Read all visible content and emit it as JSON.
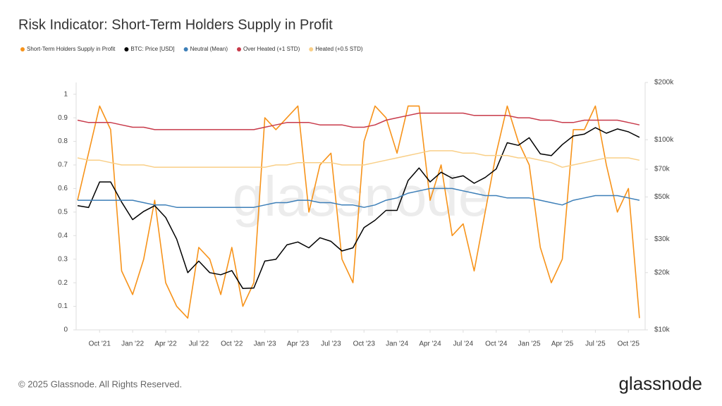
{
  "chart_data": {
    "type": "line",
    "title": "Risk Indicator: Short-Term Holders Supply in Profit",
    "x": [
      "2021-08",
      "2021-09",
      "2021-10",
      "2021-11",
      "2021-12",
      "2022-01",
      "2022-02",
      "2022-03",
      "2022-04",
      "2022-05",
      "2022-06",
      "2022-07",
      "2022-08",
      "2022-09",
      "2022-10",
      "2022-11",
      "2022-12",
      "2023-01",
      "2023-02",
      "2023-03",
      "2023-04",
      "2023-05",
      "2023-06",
      "2023-07",
      "2023-08",
      "2023-09",
      "2023-10",
      "2023-11",
      "2023-12",
      "2024-01",
      "2024-02",
      "2024-03",
      "2024-04",
      "2024-05",
      "2024-06",
      "2024-07",
      "2024-08",
      "2024-09",
      "2024-10",
      "2024-11",
      "2024-12",
      "2025-01",
      "2025-02",
      "2025-03",
      "2025-04",
      "2025-05",
      "2025-06",
      "2025-07",
      "2025-08",
      "2025-09",
      "2025-10",
      "2025-11"
    ],
    "xticks": [
      {
        "value": "2021-10",
        "label": "Oct '21"
      },
      {
        "value": "2022-01",
        "label": "Jan '22"
      },
      {
        "value": "2022-04",
        "label": "Apr '22"
      },
      {
        "value": "2022-07",
        "label": "Jul '22"
      },
      {
        "value": "2022-10",
        "label": "Oct '22"
      },
      {
        "value": "2023-01",
        "label": "Jan '23"
      },
      {
        "value": "2023-04",
        "label": "Apr '23"
      },
      {
        "value": "2023-07",
        "label": "Jul '23"
      },
      {
        "value": "2023-10",
        "label": "Oct '23"
      },
      {
        "value": "2024-01",
        "label": "Jan '24"
      },
      {
        "value": "2024-04",
        "label": "Apr '24"
      },
      {
        "value": "2024-07",
        "label": "Jul '24"
      },
      {
        "value": "2024-10",
        "label": "Oct '24"
      },
      {
        "value": "2025-01",
        "label": "Jan '25"
      },
      {
        "value": "2025-04",
        "label": "Apr '25"
      },
      {
        "value": "2025-07",
        "label": "Jul '25"
      },
      {
        "value": "2025-10",
        "label": "Oct '25"
      }
    ],
    "ylim": [
      0,
      1.05
    ],
    "yticks": [
      0,
      0.1,
      0.2,
      0.3,
      0.4,
      0.5,
      0.6,
      0.7,
      0.8,
      0.9,
      1
    ],
    "y2lim": [
      10000,
      200000
    ],
    "y2scale": "log",
    "y2ticks": [
      {
        "value": 10000,
        "label": "$10k"
      },
      {
        "value": 20000,
        "label": "$20k"
      },
      {
        "value": 30000,
        "label": "$30k"
      },
      {
        "value": 50000,
        "label": "$50k"
      },
      {
        "value": 70000,
        "label": "$70k"
      },
      {
        "value": 100000,
        "label": "$100k"
      },
      {
        "value": 200000,
        "label": "$200k"
      }
    ],
    "series": [
      {
        "name": "Short-Term Holders Supply in Profit",
        "color": "#f7931a",
        "values": [
          0.55,
          0.75,
          0.95,
          0.85,
          0.25,
          0.15,
          0.3,
          0.55,
          0.2,
          0.1,
          0.05,
          0.35,
          0.3,
          0.15,
          0.35,
          0.1,
          0.2,
          0.9,
          0.85,
          0.9,
          0.95,
          0.5,
          0.7,
          0.75,
          0.3,
          0.2,
          0.8,
          0.95,
          0.9,
          0.75,
          0.95,
          0.95,
          0.55,
          0.7,
          0.4,
          0.45,
          0.25,
          0.5,
          0.75,
          0.95,
          0.8,
          0.7,
          0.35,
          0.2,
          0.3,
          0.85,
          0.85,
          0.95,
          0.7,
          0.5,
          0.6,
          0.05
        ]
      },
      {
        "name": "BTC: Price [USD]",
        "color": "#000000",
        "axis": "y2",
        "values": [
          45000,
          44000,
          60000,
          60000,
          47000,
          38000,
          42000,
          45000,
          39000,
          30000,
          20000,
          23000,
          20000,
          19500,
          20500,
          16500,
          16600,
          23000,
          23500,
          28000,
          29000,
          27000,
          30500,
          29200,
          26000,
          27000,
          34500,
          37700,
          42500,
          42500,
          61000,
          71000,
          60000,
          67500,
          62700,
          64600,
          59000,
          63300,
          70200,
          96400,
          93400,
          102400,
          84300,
          82500,
          94200,
          104600,
          107100,
          115700,
          108200,
          114000,
          110000,
          103000
        ]
      },
      {
        "name": "Neutral (Mean)",
        "color": "#3d7fb8",
        "values": [
          0.55,
          0.55,
          0.55,
          0.55,
          0.55,
          0.55,
          0.54,
          0.53,
          0.53,
          0.52,
          0.52,
          0.52,
          0.52,
          0.52,
          0.52,
          0.52,
          0.52,
          0.53,
          0.54,
          0.54,
          0.55,
          0.55,
          0.54,
          0.54,
          0.53,
          0.53,
          0.52,
          0.53,
          0.55,
          0.56,
          0.58,
          0.59,
          0.6,
          0.6,
          0.6,
          0.59,
          0.58,
          0.57,
          0.57,
          0.56,
          0.56,
          0.56,
          0.55,
          0.54,
          0.53,
          0.55,
          0.56,
          0.57,
          0.57,
          0.57,
          0.56,
          0.55
        ]
      },
      {
        "name": "Over Heated (+1 STD)",
        "color": "#c83a4a",
        "values": [
          0.89,
          0.88,
          0.88,
          0.88,
          0.87,
          0.86,
          0.86,
          0.85,
          0.85,
          0.85,
          0.85,
          0.85,
          0.85,
          0.85,
          0.85,
          0.85,
          0.85,
          0.86,
          0.87,
          0.88,
          0.88,
          0.88,
          0.87,
          0.87,
          0.87,
          0.86,
          0.86,
          0.87,
          0.89,
          0.9,
          0.91,
          0.92,
          0.92,
          0.92,
          0.92,
          0.92,
          0.91,
          0.91,
          0.91,
          0.91,
          0.9,
          0.9,
          0.89,
          0.89,
          0.88,
          0.88,
          0.89,
          0.89,
          0.89,
          0.89,
          0.88,
          0.87
        ]
      },
      {
        "name": "Heated (+0.5 STD)",
        "color": "#f9cf87",
        "values": [
          0.73,
          0.72,
          0.72,
          0.71,
          0.7,
          0.7,
          0.7,
          0.69,
          0.69,
          0.69,
          0.69,
          0.69,
          0.69,
          0.69,
          0.69,
          0.69,
          0.69,
          0.69,
          0.7,
          0.7,
          0.71,
          0.71,
          0.71,
          0.71,
          0.7,
          0.7,
          0.7,
          0.71,
          0.72,
          0.73,
          0.74,
          0.75,
          0.76,
          0.76,
          0.76,
          0.75,
          0.75,
          0.74,
          0.74,
          0.74,
          0.73,
          0.73,
          0.72,
          0.71,
          0.69,
          0.7,
          0.71,
          0.72,
          0.73,
          0.73,
          0.73,
          0.72
        ]
      }
    ],
    "watermark": "glassnode",
    "copyright": "© 2025 Glassnode. All Rights Reserved.",
    "logo": "glassnode"
  }
}
